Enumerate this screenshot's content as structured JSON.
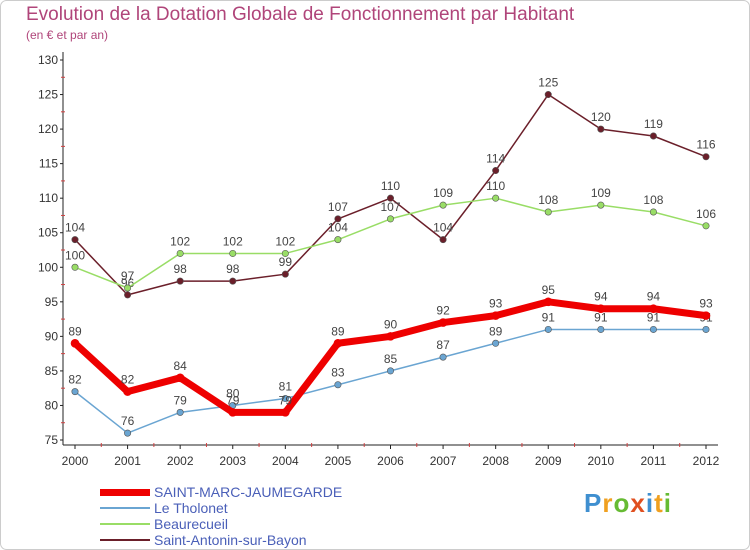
{
  "title": "Evolution de la Dotation Globale de Fonctionnement par Habitant",
  "subtitle": "(en € et par an)",
  "logo": {
    "letters": [
      "P",
      "r",
      "o",
      "x",
      "i",
      "t",
      "i"
    ],
    "colors": [
      "#3f8fd0",
      "#f0a020",
      "#66bb33",
      "#e05020",
      "#3f8fd0",
      "#f0a020",
      "#66bb33"
    ]
  },
  "chart_data": {
    "type": "line",
    "title": "Evolution de la Dotation Globale de Fonctionnement par Habitant",
    "ylabel": "(en € et par an)",
    "xlabel": "",
    "categories": [
      "2000",
      "2001",
      "2002",
      "2003",
      "2004",
      "2005",
      "2006",
      "2007",
      "2008",
      "2009",
      "2010",
      "2011",
      "2012"
    ],
    "ylim": [
      75,
      130
    ],
    "yticks": [
      75,
      80,
      85,
      90,
      95,
      100,
      105,
      110,
      115,
      120,
      125,
      130
    ],
    "grid": false,
    "legend_position": "bottom-left",
    "series": [
      {
        "name": "Saint-Antonin-sur-Bayon",
        "color": "#6b1f2a",
        "values": [
          104,
          96,
          98,
          98,
          99,
          107,
          110,
          104,
          114,
          125,
          120,
          119,
          116
        ]
      },
      {
        "name": "Beaurecueil",
        "color": "#99dd66",
        "values": [
          100,
          97,
          102,
          102,
          102,
          104,
          107,
          109,
          110,
          108,
          109,
          108,
          106
        ]
      },
      {
        "name": "Le Tholonet",
        "color": "#6aa5d2",
        "values": [
          82,
          76,
          79,
          80,
          81,
          83,
          85,
          87,
          89,
          91,
          91,
          91,
          91
        ]
      },
      {
        "name": "SAINT-MARC-JAUMEGARDE",
        "color": "#ee0000",
        "values": [
          89,
          82,
          84,
          79,
          79,
          89,
          90,
          92,
          93,
          95,
          94,
          94,
          93
        ]
      }
    ]
  }
}
